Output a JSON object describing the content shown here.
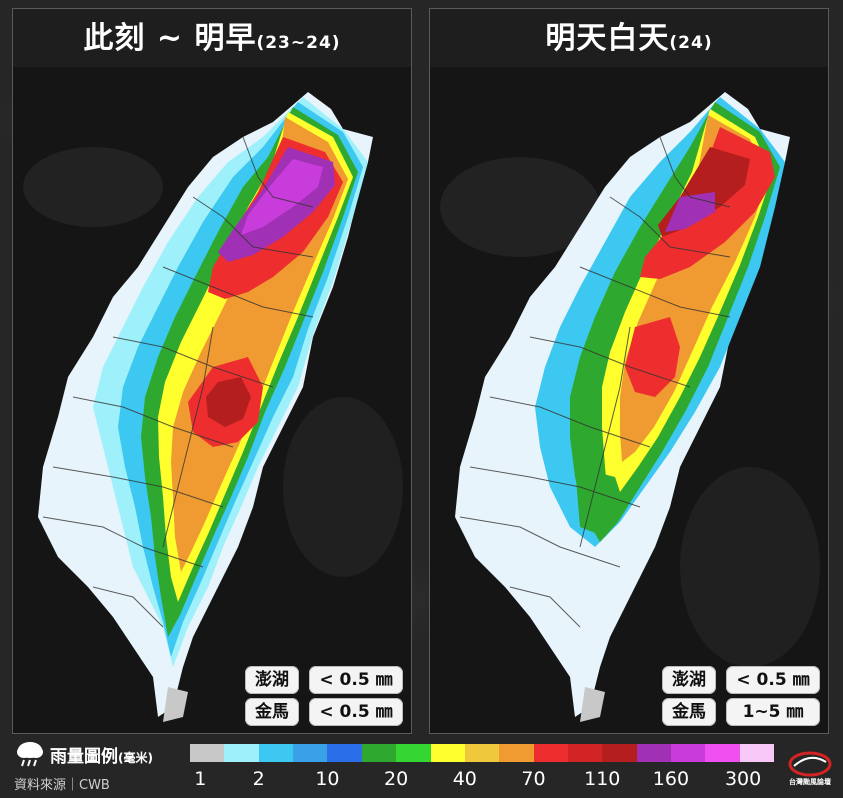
{
  "panels": [
    {
      "title": "此刻 ~ 明早",
      "subtitle": "(23~24)",
      "penghu_label": "澎湖",
      "penghu_value": "< 0.5 ㎜",
      "kinmen_label": "金馬",
      "kinmen_value": "< 0.5 ㎜"
    },
    {
      "title": "明天白天",
      "subtitle": "(24)",
      "penghu_label": "澎湖",
      "penghu_value": "< 0.5 ㎜",
      "kinmen_label": "金馬",
      "kinmen_value": "1~5 ㎜"
    }
  ],
  "legend": {
    "title": "雨量圖例",
    "unit": "(毫米)",
    "source": "資料來源｜CWB",
    "colors": [
      "#c8c8c8",
      "#9ef0fa",
      "#3cc8f0",
      "#3aa0e8",
      "#2a6ee8",
      "#2ea82e",
      "#33d633",
      "#ffff2e",
      "#f0c83c",
      "#f09a32",
      "#ee2e2e",
      "#d22424",
      "#b41e1e",
      "#a030b4",
      "#c83cdc",
      "#f050f0",
      "#f8c8f8"
    ],
    "ticks": [
      "1",
      "2",
      "10",
      "20",
      "40",
      "70",
      "110",
      "160",
      "300"
    ]
  },
  "logo_text": "台灣颱風論壇"
}
